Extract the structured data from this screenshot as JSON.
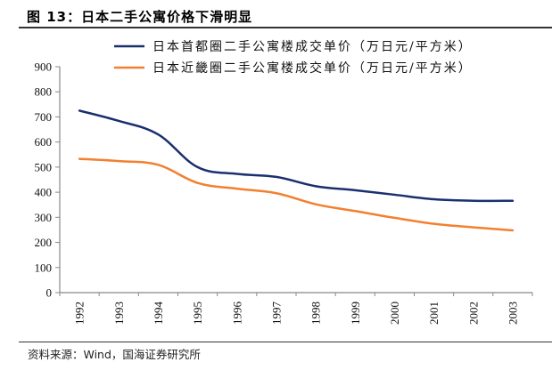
{
  "figure": {
    "title": "图 13：日本二手公寓价格下滑明显",
    "source": "资料来源：Wind，国海证券研究所"
  },
  "chart_data": {
    "type": "line",
    "title": "图 13：日本二手公寓价格下滑明显",
    "xlabel": "",
    "ylabel": "",
    "categories": [
      "1992",
      "1993",
      "1994",
      "1995",
      "1996",
      "1997",
      "1998",
      "1999",
      "2000",
      "2001",
      "2002",
      "2003"
    ],
    "ylim": [
      0,
      900
    ],
    "yticks": [
      0,
      100,
      200,
      300,
      400,
      500,
      600,
      700,
      800,
      900
    ],
    "grid": false,
    "legend_position": "top",
    "series": [
      {
        "name": "日本首都圈二手公寓楼成交单价（万日元/平方米）",
        "color": "#1a2f6e",
        "values": [
          725,
          684,
          630,
          500,
          473,
          461,
          424,
          408,
          390,
          372,
          366,
          366
        ]
      },
      {
        "name": "日本近畿圈二手公寓楼成交单价（万日元/平方米）",
        "color": "#f28030",
        "values": [
          533,
          524,
          509,
          437,
          414,
          396,
          352,
          325,
          298,
          274,
          260,
          248
        ]
      }
    ]
  }
}
